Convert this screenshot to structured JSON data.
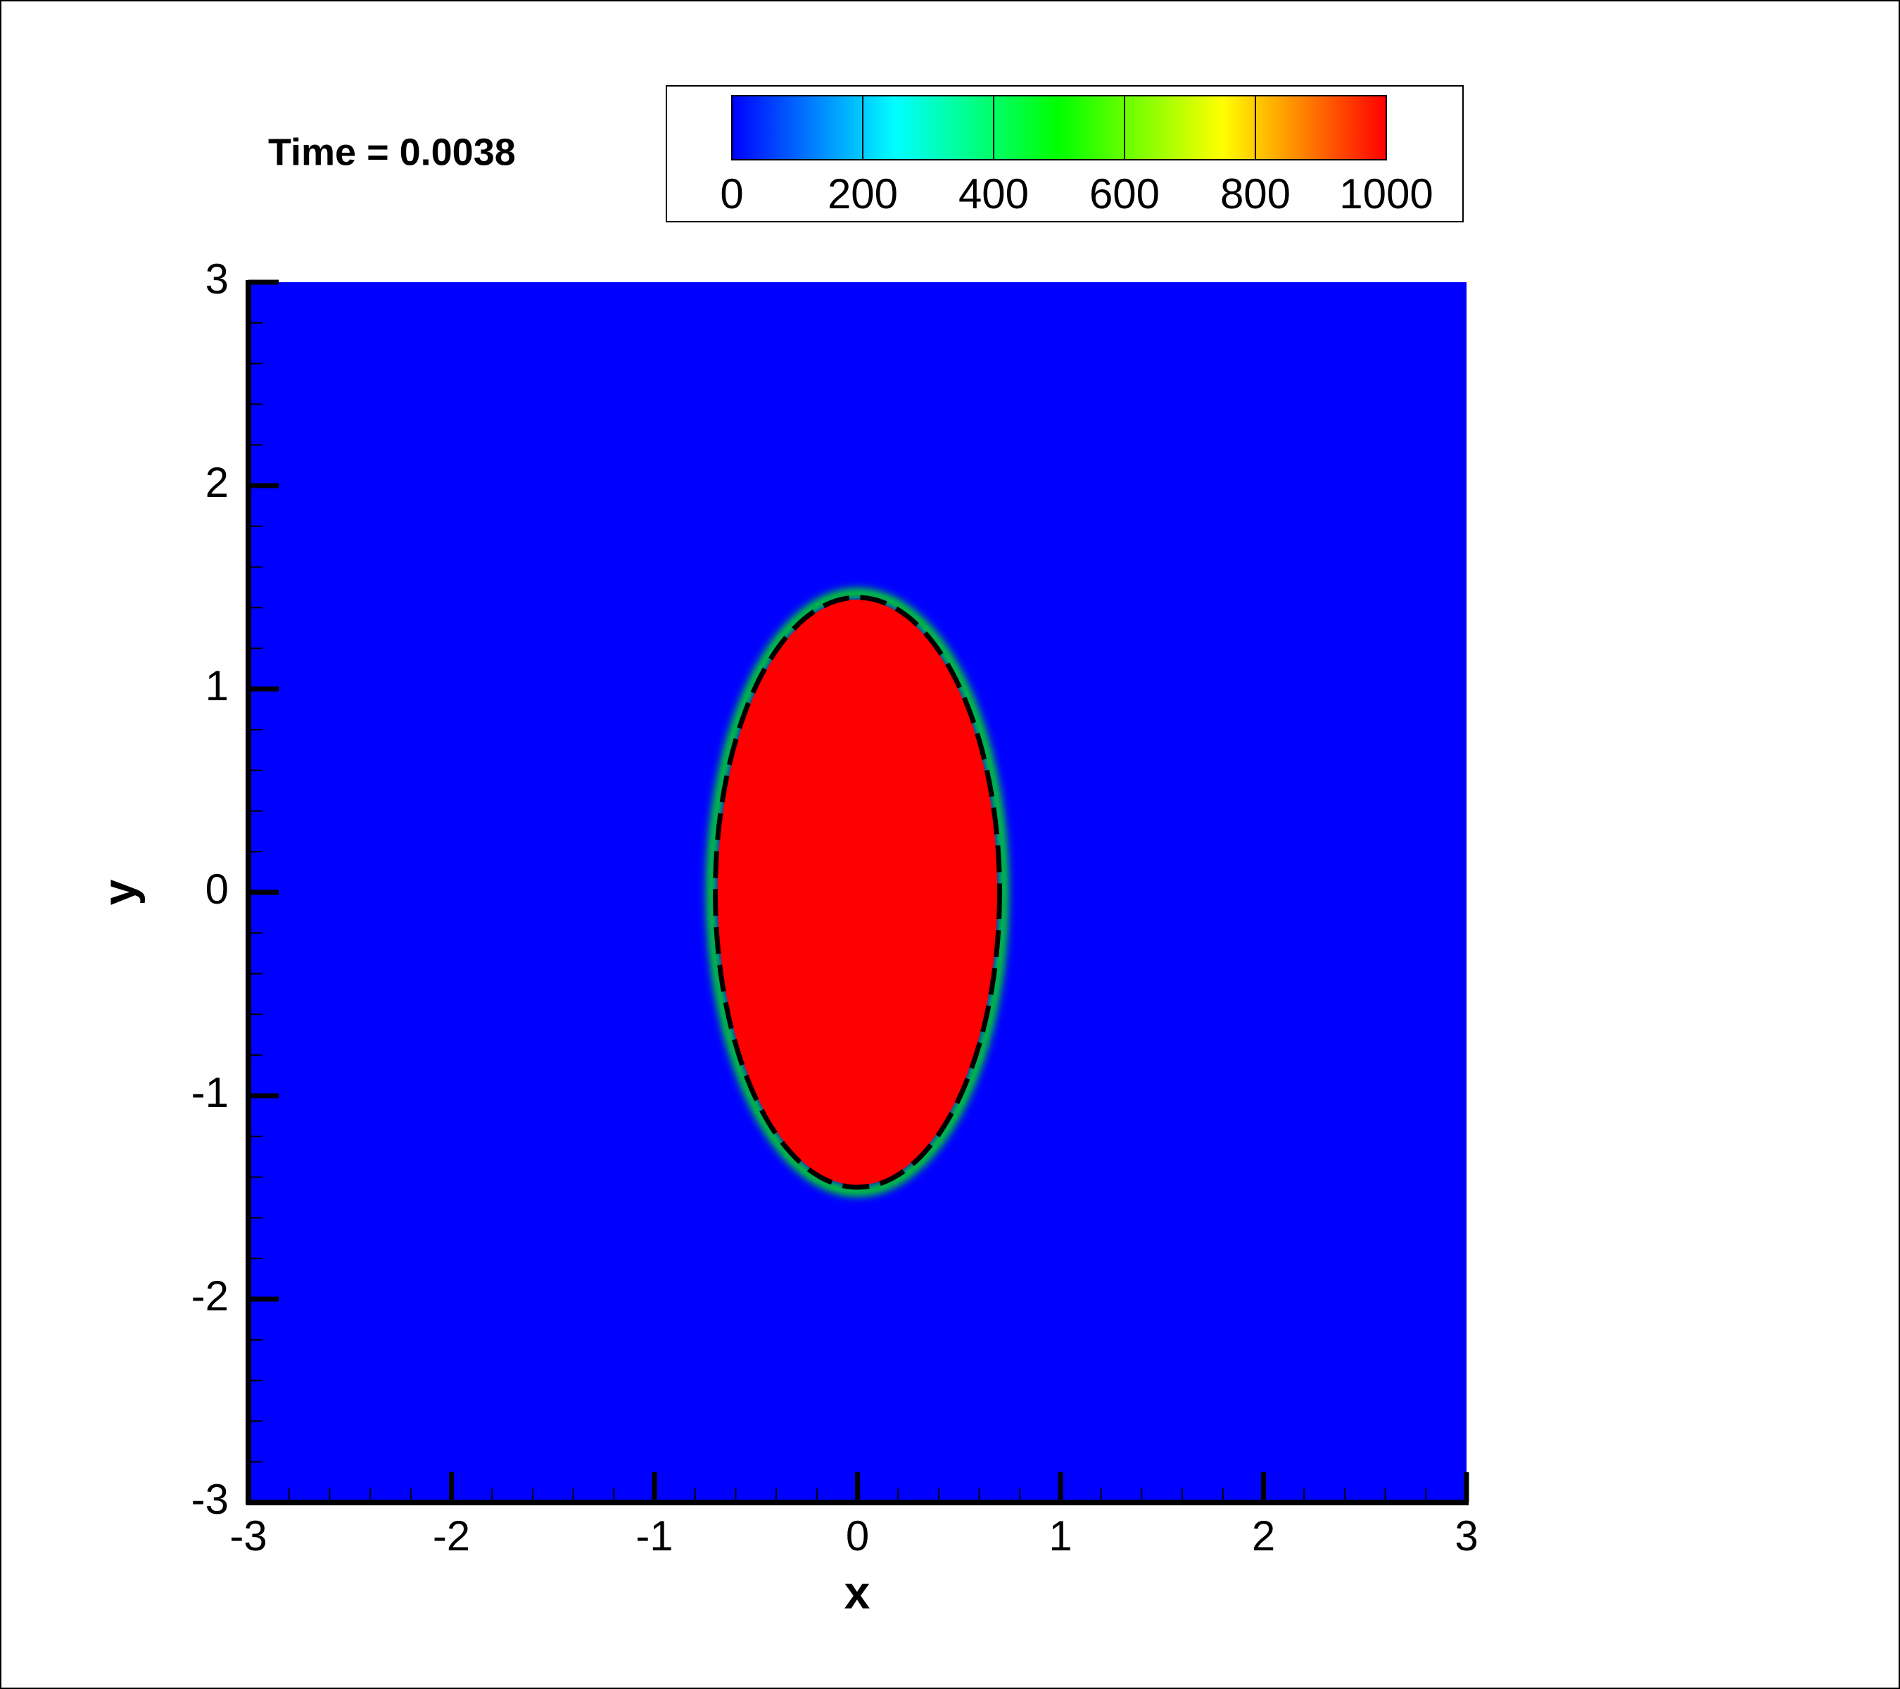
{
  "chart_data": {
    "type": "contour",
    "annotation": "Time = 0.0038",
    "xlabel": "x",
    "ylabel": "y",
    "xlim": [
      -3,
      3
    ],
    "ylim": [
      -3,
      3
    ],
    "xticks": [
      -3,
      -2,
      -1,
      0,
      1,
      2,
      3
    ],
    "yticks": [
      -3,
      -2,
      -1,
      0,
      1,
      2,
      3
    ],
    "minor_ticks_per_interval": 4,
    "colorbar": {
      "levels": [
        0,
        200,
        400,
        600,
        800,
        1000
      ],
      "colormap": [
        "#0000ff",
        "#00ffff",
        "#00ff00",
        "#ffff00",
        "#ff0000"
      ]
    },
    "outside_value": 0,
    "inside_value": 1000,
    "interface": {
      "cx": 0,
      "cy": 0,
      "rx": 0.7,
      "ry": 1.45,
      "color": "#000000",
      "dashed": true
    }
  }
}
